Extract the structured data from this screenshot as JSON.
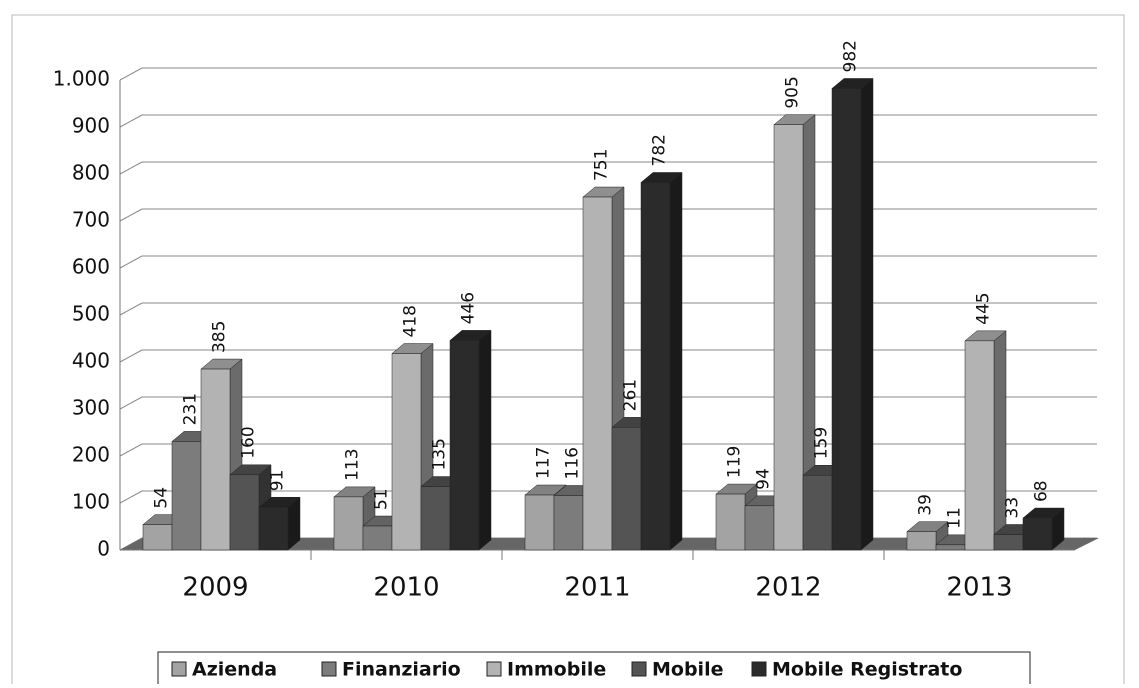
{
  "chart_data": {
    "type": "bar3d",
    "categories": [
      "2009",
      "2010",
      "2011",
      "2012",
      "2013"
    ],
    "series": [
      {
        "name": "Azienda",
        "color": "#a3a3a3",
        "values": [
          54,
          113,
          117,
          119,
          39
        ]
      },
      {
        "name": "Finanziario",
        "color": "#7c7c7c",
        "values": [
          231,
          51,
          116,
          94,
          11
        ]
      },
      {
        "name": "Immobile",
        "color": "#b3b3b3",
        "values": [
          385,
          418,
          751,
          905,
          445
        ]
      },
      {
        "name": "Mobile",
        "color": "#545454",
        "values": [
          160,
          135,
          261,
          159,
          33
        ]
      },
      {
        "name": "Mobile Registrato",
        "color": "#2b2b2b",
        "values": [
          91,
          446,
          782,
          982,
          68
        ]
      }
    ],
    "ylim": [
      0,
      1000
    ],
    "yticks": [
      0,
      100,
      200,
      300,
      400,
      500,
      600,
      700,
      800,
      900,
      {
        "value": 1000,
        "label": "1.000"
      }
    ],
    "grid": true,
    "legend": "bottom"
  }
}
